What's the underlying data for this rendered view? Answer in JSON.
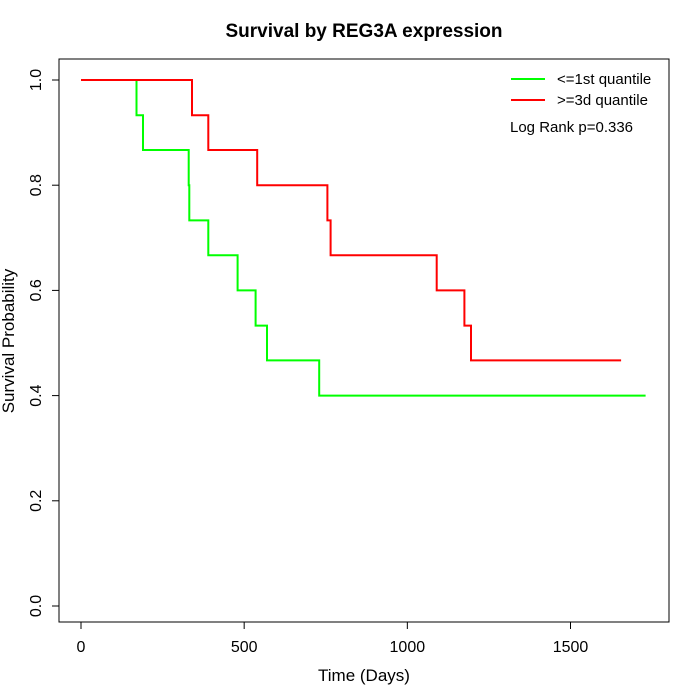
{
  "chart_data": {
    "type": "line",
    "title": "Survival by REG3A expression",
    "xlabel": "Time (Days)",
    "ylabel": "Survival Probability",
    "xlim": [
      0,
      1750
    ],
    "ylim": [
      0,
      1.0
    ],
    "x_ticks": [
      "0",
      "500",
      "1000",
      "1500"
    ],
    "y_ticks": [
      "0.0",
      "0.2",
      "0.4",
      "0.6",
      "0.8",
      "1.0"
    ],
    "grid": false,
    "legend_position": "top-right",
    "annotation": "Log Rank p=0.336",
    "series": [
      {
        "name": "<=1st quantile",
        "color": "#00ff00",
        "step": true,
        "x": [
          0,
          170,
          170,
          190,
          190,
          330,
          330,
          332,
          332,
          390,
          390,
          480,
          480,
          535,
          535,
          570,
          570,
          730,
          730,
          1730
        ],
        "y": [
          1.0,
          1.0,
          0.933,
          0.933,
          0.867,
          0.867,
          0.8,
          0.8,
          0.733,
          0.733,
          0.667,
          0.667,
          0.6,
          0.6,
          0.533,
          0.533,
          0.467,
          0.467,
          0.4,
          0.4
        ]
      },
      {
        "name": ">=3d quantile",
        "color": "#ff0000",
        "step": true,
        "x": [
          0,
          340,
          340,
          390,
          390,
          540,
          540,
          755,
          755,
          765,
          765,
          1090,
          1090,
          1175,
          1175,
          1195,
          1195,
          1655
        ],
        "y": [
          1.0,
          1.0,
          0.933,
          0.933,
          0.867,
          0.867,
          0.8,
          0.8,
          0.733,
          0.733,
          0.667,
          0.667,
          0.6,
          0.6,
          0.533,
          0.533,
          0.467,
          0.467
        ]
      }
    ]
  }
}
